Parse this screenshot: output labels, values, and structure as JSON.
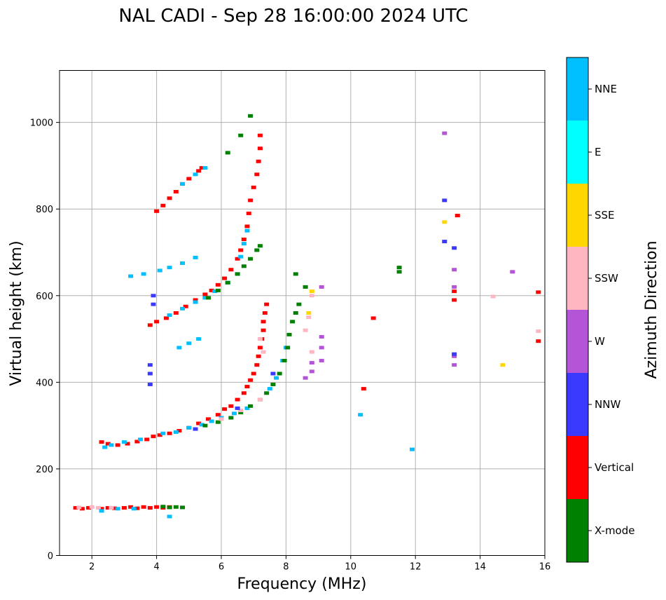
{
  "chart_data": {
    "type": "scatter",
    "title": "NAL CADI - Sep 28 16:00:00 2024 UTC",
    "xlabel": "Frequency (MHz)",
    "ylabel": "Virtual height (km)",
    "xlim": [
      1,
      16
    ],
    "ylim": [
      0,
      1120
    ],
    "xticks": [
      2,
      4,
      6,
      8,
      10,
      12,
      14,
      16
    ],
    "yticks": [
      0,
      200,
      400,
      600,
      800,
      1000
    ],
    "grid": true,
    "colorbar": {
      "title": "Azimuth Direction",
      "categories": [
        "X-mode",
        "Vertical",
        "NNW",
        "W",
        "SSW",
        "SSE",
        "E",
        "NNE"
      ],
      "colors": [
        "#008000",
        "#ff0000",
        "#3a3aff",
        "#b455d8",
        "#ffb6c1",
        "#ffd700",
        "#00ffff",
        "#00bfff"
      ]
    },
    "traces": [
      {
        "category": "Vertical",
        "points": [
          [
            1.5,
            110
          ],
          [
            1.7,
            108
          ],
          [
            1.9,
            110
          ],
          [
            2.3,
            108
          ],
          [
            2.5,
            110
          ],
          [
            2.7,
            109
          ],
          [
            3.0,
            110
          ],
          [
            3.2,
            112
          ],
          [
            3.4,
            109
          ],
          [
            3.6,
            112
          ],
          [
            3.8,
            110
          ],
          [
            4.0,
            112
          ],
          [
            4.2,
            110
          ],
          [
            4.4,
            112
          ]
        ]
      },
      {
        "category": "X-mode",
        "points": [
          [
            4.2,
            113
          ],
          [
            4.4,
            111
          ],
          [
            4.6,
            112
          ],
          [
            4.8,
            111
          ]
        ]
      },
      {
        "category": "SSW",
        "points": [
          [
            1.6,
            111
          ],
          [
            2.0,
            112
          ],
          [
            2.2,
            110
          ],
          [
            2.6,
            110
          ]
        ]
      },
      {
        "category": "NNE",
        "points": [
          [
            2.3,
            103
          ],
          [
            2.8,
            108
          ],
          [
            3.3,
            108
          ],
          [
            4.4,
            90
          ]
        ]
      },
      {
        "category": "Vertical",
        "points": [
          [
            2.3,
            262
          ],
          [
            2.5,
            258
          ],
          [
            2.8,
            255
          ],
          [
            3.1,
            258
          ],
          [
            3.4,
            263
          ],
          [
            3.7,
            268
          ],
          [
            3.9,
            275
          ],
          [
            4.1,
            278
          ],
          [
            4.4,
            282
          ],
          [
            4.7,
            288
          ],
          [
            5.0,
            295
          ],
          [
            5.3,
            305
          ],
          [
            5.6,
            315
          ],
          [
            5.9,
            325
          ],
          [
            6.1,
            338
          ],
          [
            6.3,
            345
          ],
          [
            6.5,
            360
          ],
          [
            6.7,
            375
          ],
          [
            6.8,
            390
          ],
          [
            6.9,
            405
          ],
          [
            7.0,
            420
          ],
          [
            7.1,
            440
          ],
          [
            7.15,
            460
          ],
          [
            7.2,
            480
          ],
          [
            7.25,
            500
          ],
          [
            7.3,
            520
          ],
          [
            7.3,
            540
          ],
          [
            7.35,
            560
          ],
          [
            7.4,
            580
          ]
        ]
      },
      {
        "category": "NNE",
        "points": [
          [
            2.4,
            250
          ],
          [
            2.6,
            255
          ],
          [
            3.0,
            262
          ],
          [
            3.5,
            268
          ],
          [
            4.2,
            282
          ],
          [
            4.6,
            285
          ],
          [
            5.0,
            295
          ],
          [
            5.4,
            302
          ],
          [
            5.7,
            310
          ],
          [
            6.0,
            318
          ],
          [
            6.4,
            328
          ],
          [
            6.8,
            340
          ],
          [
            7.2,
            360
          ],
          [
            7.5,
            385
          ],
          [
            7.7,
            410
          ],
          [
            7.9,
            450
          ],
          [
            8.0,
            480
          ]
        ]
      },
      {
        "category": "X-mode",
        "points": [
          [
            5.5,
            300
          ],
          [
            5.9,
            308
          ],
          [
            6.3,
            318
          ],
          [
            6.6,
            330
          ],
          [
            6.9,
            345
          ],
          [
            7.2,
            360
          ],
          [
            7.4,
            375
          ],
          [
            7.6,
            395
          ],
          [
            7.8,
            420
          ],
          [
            7.95,
            450
          ],
          [
            8.05,
            480
          ],
          [
            8.1,
            510
          ],
          [
            8.2,
            540
          ],
          [
            8.3,
            560
          ],
          [
            8.4,
            580
          ]
        ]
      },
      {
        "category": "SSW",
        "points": [
          [
            6.0,
            315
          ],
          [
            6.6,
            335
          ],
          [
            7.2,
            360
          ],
          [
            7.3,
            470
          ],
          [
            7.2,
            500
          ]
        ]
      },
      {
        "category": "NNW",
        "points": [
          [
            5.2,
            292
          ],
          [
            6.5,
            340
          ],
          [
            7.6,
            420
          ]
        ]
      },
      {
        "category": "Vertical",
        "points": [
          [
            3.8,
            532
          ],
          [
            4.0,
            540
          ],
          [
            4.3,
            548
          ],
          [
            4.6,
            560
          ],
          [
            4.9,
            575
          ],
          [
            5.2,
            590
          ],
          [
            5.5,
            603
          ],
          [
            5.7,
            612
          ],
          [
            5.9,
            625
          ],
          [
            6.1,
            640
          ],
          [
            6.3,
            660
          ],
          [
            6.5,
            685
          ],
          [
            6.6,
            705
          ],
          [
            6.7,
            730
          ],
          [
            6.8,
            760
          ],
          [
            6.85,
            790
          ],
          [
            6.9,
            820
          ],
          [
            7.0,
            850
          ],
          [
            7.1,
            880
          ],
          [
            7.15,
            910
          ],
          [
            7.2,
            940
          ],
          [
            7.2,
            970
          ]
        ]
      },
      {
        "category": "NNE",
        "points": [
          [
            4.4,
            555
          ],
          [
            4.8,
            570
          ],
          [
            5.2,
            585
          ],
          [
            5.5,
            595
          ],
          [
            5.8,
            610
          ],
          [
            6.2,
            630
          ],
          [
            6.5,
            650
          ],
          [
            6.6,
            690
          ],
          [
            6.7,
            720
          ],
          [
            6.8,
            750
          ]
        ]
      },
      {
        "category": "X-mode",
        "points": [
          [
            5.6,
            595
          ],
          [
            5.9,
            612
          ],
          [
            6.2,
            630
          ],
          [
            6.5,
            650
          ],
          [
            6.7,
            668
          ],
          [
            6.9,
            685
          ],
          [
            7.1,
            705
          ],
          [
            7.2,
            715
          ]
        ]
      },
      {
        "category": "NNE",
        "points": [
          [
            3.2,
            645
          ],
          [
            3.6,
            650
          ],
          [
            4.1,
            658
          ],
          [
            4.4,
            665
          ],
          [
            4.8,
            675
          ],
          [
            5.2,
            688
          ]
        ]
      },
      {
        "category": "NNE",
        "points": [
          [
            4.7,
            480
          ],
          [
            5.0,
            490
          ],
          [
            5.3,
            500
          ]
        ]
      },
      {
        "category": "Vertical",
        "points": [
          [
            4.0,
            795
          ],
          [
            4.2,
            808
          ],
          [
            4.4,
            825
          ],
          [
            4.6,
            840
          ],
          [
            4.8,
            858
          ],
          [
            5.0,
            870
          ],
          [
            5.3,
            888
          ],
          [
            5.4,
            895
          ]
        ]
      },
      {
        "category": "NNE",
        "points": [
          [
            4.8,
            858
          ],
          [
            5.2,
            880
          ],
          [
            5.5,
            895
          ]
        ]
      },
      {
        "category": "NNW",
        "points": [
          [
            3.8,
            395
          ],
          [
            3.8,
            420
          ],
          [
            3.8,
            440
          ],
          [
            3.9,
            580
          ],
          [
            3.9,
            600
          ]
        ]
      },
      {
        "category": "W",
        "points": [
          [
            8.6,
            410
          ],
          [
            8.8,
            425
          ],
          [
            8.8,
            445
          ],
          [
            9.1,
            450
          ],
          [
            9.1,
            480
          ],
          [
            9.1,
            505
          ],
          [
            9.1,
            620
          ]
        ]
      },
      {
        "category": "SSW",
        "points": [
          [
            8.6,
            520
          ],
          [
            8.7,
            550
          ],
          [
            8.8,
            470
          ],
          [
            8.8,
            600
          ]
        ]
      },
      {
        "category": "SSE",
        "points": [
          [
            8.7,
            560
          ],
          [
            8.8,
            610
          ],
          [
            14.7,
            440
          ],
          [
            12.9,
            770
          ]
        ]
      },
      {
        "category": "X-mode",
        "points": [
          [
            8.3,
            650
          ],
          [
            8.6,
            620
          ],
          [
            11.5,
            665
          ],
          [
            11.5,
            655
          ],
          [
            6.6,
            970
          ],
          [
            6.9,
            1015
          ],
          [
            6.2,
            930
          ]
        ]
      },
      {
        "category": "W",
        "points": [
          [
            13.2,
            440
          ],
          [
            13.2,
            460
          ],
          [
            13.2,
            620
          ],
          [
            13.2,
            660
          ],
          [
            12.9,
            975
          ],
          [
            15.0,
            655
          ]
        ]
      },
      {
        "category": "Vertical",
        "points": [
          [
            13.2,
            590
          ],
          [
            13.2,
            610
          ],
          [
            13.3,
            785
          ],
          [
            15.8,
            495
          ],
          [
            15.8,
            608
          ],
          [
            10.4,
            385
          ],
          [
            10.7,
            548
          ]
        ]
      },
      {
        "category": "NNW",
        "points": [
          [
            12.9,
            725
          ],
          [
            12.9,
            820
          ],
          [
            13.2,
            710
          ],
          [
            13.2,
            465
          ]
        ]
      },
      {
        "category": "SSW",
        "points": [
          [
            14.4,
            598
          ],
          [
            15.8,
            518
          ]
        ]
      },
      {
        "category": "NNE",
        "points": [
          [
            10.3,
            325
          ],
          [
            11.9,
            245
          ]
        ]
      }
    ]
  }
}
